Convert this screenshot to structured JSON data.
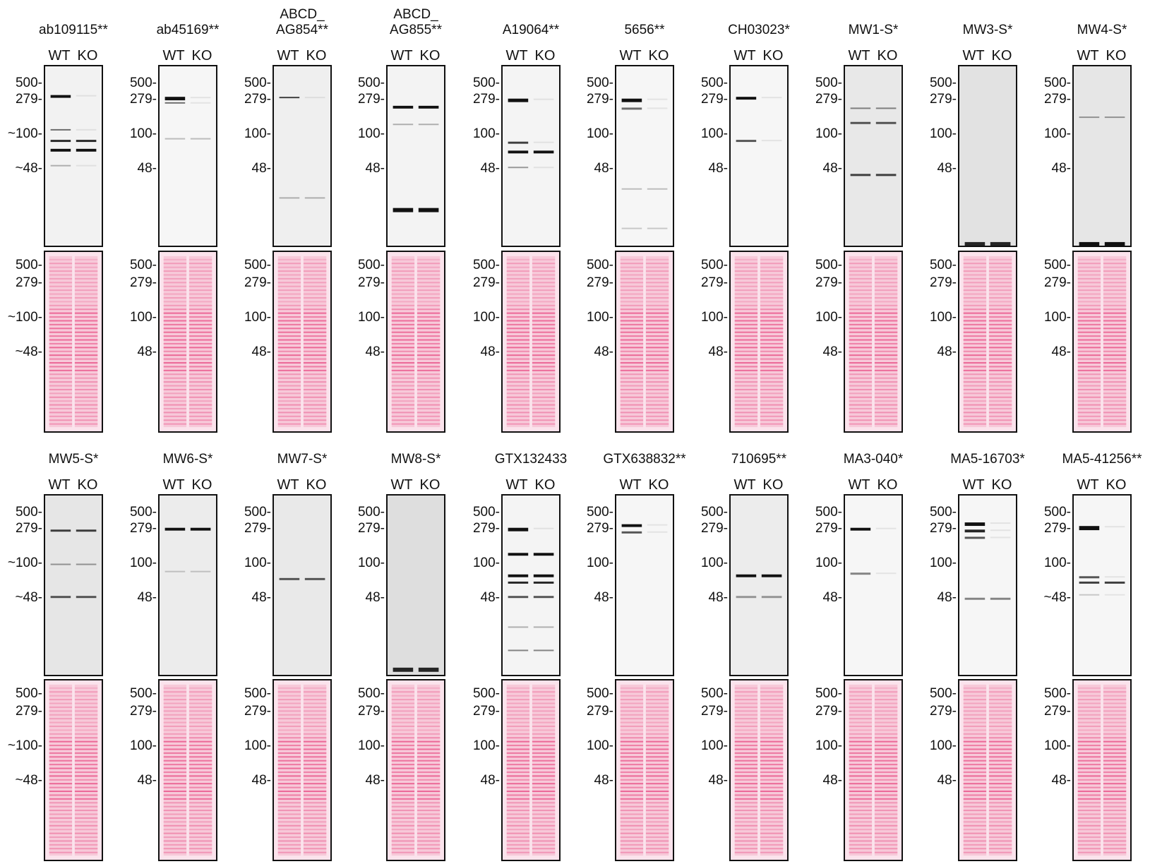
{
  "lane_labels": {
    "wt": "WT",
    "ko": "KO"
  },
  "colors": {
    "stain": "#e8457f",
    "stain_bg": "#f7c9d9",
    "wb_band": "#111111",
    "wb_bg": "#f4f4f4"
  },
  "panels": [
    {
      "title": "ab109115**",
      "wb_markers": [
        "500-",
        "279-",
        "~100-",
        "~48-"
      ],
      "stain_markers": [
        "500-",
        "279-",
        "~100-",
        "~48-"
      ],
      "wb_bg": "#f2f2f2"
    },
    {
      "title": "ab45169**",
      "wb_markers": [
        "500-",
        "279-",
        "100-",
        "48-"
      ],
      "stain_markers": [
        "500-",
        "279-",
        "100-",
        "48-"
      ],
      "wb_bg": "#f6f6f6"
    },
    {
      "title": "ABCD_\nAG854**",
      "wb_markers": [
        "500-",
        "279-",
        "100-",
        "48-"
      ],
      "stain_markers": [
        "500-",
        "279-",
        "100-",
        "48-"
      ],
      "wb_bg": "#efefef"
    },
    {
      "title": "ABCD_\nAG855**",
      "wb_markers": [
        "500-",
        "279-",
        "100-",
        "48-"
      ],
      "stain_markers": [
        "500-",
        "279-",
        "100-",
        "48-"
      ],
      "wb_bg": "#f3f3f3"
    },
    {
      "title": "A19064**",
      "wb_markers": [
        "500-",
        "279-",
        "100-",
        "48-"
      ],
      "stain_markers": [
        "500-",
        "279-",
        "100-",
        "48-"
      ],
      "wb_bg": "#f4f4f4"
    },
    {
      "title": "5656**",
      "wb_markers": [
        "500-",
        "279-",
        "100-",
        "48-"
      ],
      "stain_markers": [
        "500-",
        "279-",
        "100-",
        "48-"
      ],
      "wb_bg": "#f6f6f6"
    },
    {
      "title": "CH03023*",
      "wb_markers": [
        "500-",
        "279-",
        "100-",
        "48-"
      ],
      "stain_markers": [
        "500-",
        "279-",
        "100-",
        "48-"
      ],
      "wb_bg": "#f6f6f6"
    },
    {
      "title": "MW1-S*",
      "wb_markers": [
        "500-",
        "279-",
        "100-",
        "48-"
      ],
      "stain_markers": [
        "500-",
        "279-",
        "100-",
        "48-"
      ],
      "wb_bg": "#e8e8e8"
    },
    {
      "title": "MW3-S*",
      "wb_markers": [
        "500-",
        "279-",
        "100-",
        "48-"
      ],
      "stain_markers": [
        "500-",
        "279-",
        "100-",
        "48-"
      ],
      "wb_bg": "#e2e2e2"
    },
    {
      "title": "MW4-S*",
      "wb_markers": [
        "500-",
        "279-",
        "100-",
        "48-"
      ],
      "stain_markers": [
        "500-",
        "279-",
        "100-",
        "48-"
      ],
      "wb_bg": "#e6e6e6"
    },
    {
      "title": "MW5-S*",
      "wb_markers": [
        "500-",
        "279-",
        "~100-",
        "~48-"
      ],
      "stain_markers": [
        "500-",
        "279-",
        "~100-",
        "~48-"
      ],
      "wb_bg": "#e6e6e6"
    },
    {
      "title": "MW6-S*",
      "wb_markers": [
        "500-",
        "279-",
        "100-",
        "48-"
      ],
      "stain_markers": [
        "500-",
        "279-",
        "100-",
        "48-"
      ],
      "wb_bg": "#ececec"
    },
    {
      "title": "MW7-S*",
      "wb_markers": [
        "500-",
        "279-",
        "100-",
        "48-"
      ],
      "stain_markers": [
        "500-",
        "279-",
        "100-",
        "48-"
      ],
      "wb_bg": "#e9e9e9"
    },
    {
      "title": "MW8-S*",
      "wb_markers": [
        "500-",
        "279-",
        "100-",
        "48-"
      ],
      "stain_markers": [
        "500-",
        "279-",
        "100-",
        "48-"
      ],
      "wb_bg": "#dedede"
    },
    {
      "title": "GTX132433",
      "wb_markers": [
        "500-",
        "279-",
        "100-",
        "48-"
      ],
      "stain_markers": [
        "500-",
        "279-",
        "100-",
        "48-"
      ],
      "wb_bg": "#f4f4f4"
    },
    {
      "title": "GTX638832**",
      "wb_markers": [
        "500-",
        "279-",
        "100-",
        "48-"
      ],
      "stain_markers": [
        "500-",
        "279-",
        "100-",
        "48-"
      ],
      "wb_bg": "#f6f6f6"
    },
    {
      "title": "710695**",
      "wb_markers": [
        "500-",
        "279-",
        "100-",
        "48-"
      ],
      "stain_markers": [
        "500-",
        "279-",
        "100-",
        "48-"
      ],
      "wb_bg": "#ececec"
    },
    {
      "title": "MA3-040*",
      "wb_markers": [
        "500-",
        "279-",
        "100-",
        "48-"
      ],
      "stain_markers": [
        "500-",
        "279-",
        "100-",
        "48-"
      ],
      "wb_bg": "#f6f6f6"
    },
    {
      "title": "MA5-16703*",
      "wb_markers": [
        "500-",
        "279-",
        "100-",
        "48-"
      ],
      "stain_markers": [
        "500-",
        "279-",
        "100-",
        "48-"
      ],
      "wb_bg": "#f6f6f6"
    },
    {
      "title": "MA5-41256**",
      "wb_markers": [
        "500-",
        "279-",
        "100-",
        "~48-"
      ],
      "stain_markers": [
        "500-",
        "279-",
        "100-",
        "48-"
      ],
      "wb_bg": "#f6f6f6"
    }
  ]
}
